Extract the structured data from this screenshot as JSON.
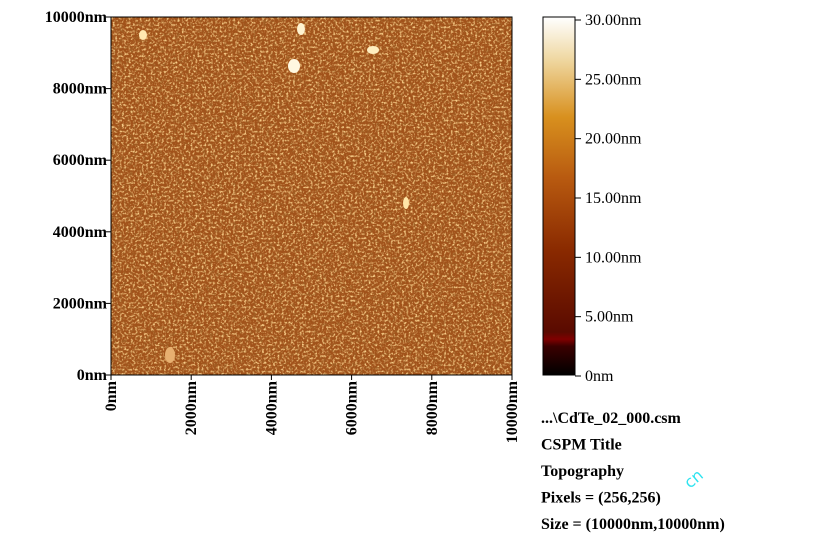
{
  "image": {
    "y_axis_labels": [
      "0nm",
      "2000nm",
      "4000nm",
      "6000nm",
      "8000nm",
      "10000nm"
    ],
    "x_axis_labels": [
      "0nm",
      "2000nm",
      "4000nm",
      "6000nm",
      "8000nm",
      "10000nm"
    ],
    "colorbar_labels": [
      "0nm",
      "5.00nm",
      "10.00nm",
      "15.00nm",
      "20.00nm",
      "25.00nm",
      "30.00nm"
    ]
  },
  "info": [
    "...\\CdTe_02_000.csm",
    "CSPM Title",
    "Topography",
    "Pixels = (256,256)",
    "Size = (10000nm,10000nm)"
  ],
  "watermark": "cn"
}
